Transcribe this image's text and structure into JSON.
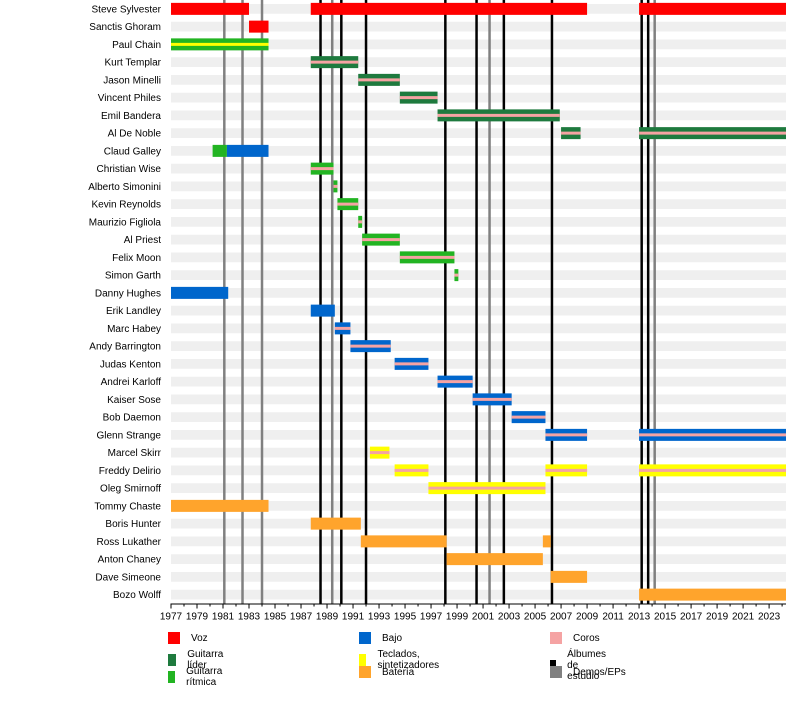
{
  "chart_data": {
    "type": "timeline",
    "x_range": [
      1977,
      2024.3
    ],
    "x_ticks": [
      1977,
      1979,
      1981,
      1983,
      1985,
      1987,
      1989,
      1991,
      1993,
      1995,
      1997,
      1999,
      2001,
      2003,
      2005,
      2007,
      2009,
      2011,
      2013,
      2015,
      2017,
      2019,
      2021,
      2023
    ],
    "colors": {
      "voz": "#ff0000",
      "guitarra_lider": "#1e7a3e",
      "guitarra_ritmica": "#22b422",
      "bajo": "#0066cc",
      "coros": "#f5a3a3",
      "teclados": "#ffff00",
      "bateria": "#ffa42c",
      "album": "#000000",
      "demo": "#808080"
    },
    "members": [
      {
        "name": "Steve Sylvester",
        "spans": [
          [
            1977,
            1983,
            "voz",
            null
          ],
          [
            1987.75,
            2009,
            "voz",
            null
          ],
          [
            2013,
            2024.3,
            "voz",
            null
          ]
        ]
      },
      {
        "name": "Sanctis Ghoram",
        "spans": [
          [
            1983,
            1984.5,
            "voz",
            null
          ]
        ]
      },
      {
        "name": "Paul Chain",
        "spans": [
          [
            1977,
            1984.5,
            "guitarra_ritmica",
            "teclados"
          ]
        ]
      },
      {
        "name": "Kurt Templar",
        "spans": [
          [
            1987.75,
            1991.4,
            "guitarra_lider",
            "coros"
          ]
        ]
      },
      {
        "name": "Jason Minelli",
        "spans": [
          [
            1991.4,
            1994.6,
            "guitarra_lider",
            "coros"
          ]
        ]
      },
      {
        "name": "Vincent Philes",
        "spans": [
          [
            1994.6,
            1997.5,
            "guitarra_lider",
            "coros"
          ]
        ]
      },
      {
        "name": "Emil Bandera",
        "spans": [
          [
            1997.5,
            2006.9,
            "guitarra_lider",
            "coros"
          ]
        ]
      },
      {
        "name": "Al De Noble",
        "spans": [
          [
            2007,
            2008.5,
            "guitarra_lider",
            "coros"
          ],
          [
            2013,
            2024.3,
            "guitarra_lider",
            "coros"
          ]
        ]
      },
      {
        "name": "Claud Galley",
        "spans": [
          [
            1980.2,
            1981.3,
            "guitarra_ritmica",
            null
          ],
          [
            1981.3,
            1984.5,
            "bajo",
            null
          ]
        ]
      },
      {
        "name": "Christian Wise",
        "spans": [
          [
            1987.75,
            1989.5,
            "guitarra_ritmica",
            "coros"
          ]
        ]
      },
      {
        "name": "Alberto Simonini",
        "spans": [
          [
            1989.5,
            1989.8,
            "guitarra_ritmica",
            "coros"
          ]
        ]
      },
      {
        "name": "Kevin Reynolds",
        "spans": [
          [
            1989.8,
            1991.4,
            "guitarra_ritmica",
            "coros"
          ]
        ]
      },
      {
        "name": "Maurizio Figliola",
        "spans": [
          [
            1991.4,
            1991.7,
            "guitarra_ritmica",
            "coros"
          ]
        ]
      },
      {
        "name": "Al Priest",
        "spans": [
          [
            1991.7,
            1994.6,
            "guitarra_ritmica",
            "coros"
          ]
        ]
      },
      {
        "name": "Felix Moon",
        "spans": [
          [
            1994.6,
            1998.8,
            "guitarra_ritmica",
            "coros"
          ]
        ]
      },
      {
        "name": "Simon Garth",
        "spans": [
          [
            1998.8,
            1999.1,
            "guitarra_ritmica",
            "coros"
          ]
        ]
      },
      {
        "name": "Danny Hughes",
        "spans": [
          [
            1977,
            1981.4,
            "bajo",
            null
          ]
        ]
      },
      {
        "name": "Erik Landley",
        "spans": [
          [
            1987.75,
            1989.6,
            "bajo",
            null
          ]
        ]
      },
      {
        "name": "Marc Habey",
        "spans": [
          [
            1989.6,
            1990.8,
            "bajo",
            "coros"
          ]
        ]
      },
      {
        "name": "Andy Barrington",
        "spans": [
          [
            1990.8,
            1993.9,
            "bajo",
            "coros"
          ]
        ]
      },
      {
        "name": "Judas Kenton",
        "spans": [
          [
            1994.2,
            1996.8,
            "bajo",
            "coros"
          ]
        ]
      },
      {
        "name": "Andrei Karloff",
        "spans": [
          [
            1997.5,
            2000.2,
            "bajo",
            "coros"
          ]
        ]
      },
      {
        "name": "Kaiser Sose",
        "spans": [
          [
            2000.2,
            2003.2,
            "bajo",
            "coros"
          ]
        ]
      },
      {
        "name": "Bob Daemon",
        "spans": [
          [
            2003.2,
            2005.8,
            "bajo",
            "coros"
          ]
        ]
      },
      {
        "name": "Glenn Strange",
        "spans": [
          [
            2005.8,
            2009,
            "bajo",
            "coros"
          ],
          [
            2013,
            2024.3,
            "bajo",
            "coros"
          ]
        ]
      },
      {
        "name": "Marcel Skirr",
        "spans": [
          [
            1992.3,
            1993.8,
            "teclados",
            "coros"
          ]
        ]
      },
      {
        "name": "Freddy Delirio",
        "spans": [
          [
            1994.2,
            1996.8,
            "teclados",
            "coros"
          ],
          [
            2005.8,
            2009,
            "teclados",
            "coros"
          ],
          [
            2013,
            2024.3,
            "teclados",
            "coros"
          ]
        ]
      },
      {
        "name": "Oleg Smirnoff",
        "spans": [
          [
            1996.8,
            2005.8,
            "teclados",
            "coros"
          ]
        ]
      },
      {
        "name": "Tommy Chaste",
        "spans": [
          [
            1977,
            1984.5,
            "bateria",
            null
          ]
        ]
      },
      {
        "name": "Boris Hunter",
        "spans": [
          [
            1987.75,
            1991.6,
            "bateria",
            null
          ]
        ]
      },
      {
        "name": "Ross Lukather",
        "spans": [
          [
            1991.6,
            1998.2,
            "bateria",
            null
          ],
          [
            2005.6,
            2006.2,
            "bateria",
            null
          ]
        ]
      },
      {
        "name": "Anton Chaney",
        "spans": [
          [
            1998.2,
            2005.6,
            "bateria",
            null
          ]
        ]
      },
      {
        "name": "Dave Simeone",
        "spans": [
          [
            2006.2,
            2009,
            "bateria",
            null
          ]
        ]
      },
      {
        "name": "Bozo Wolff",
        "spans": [
          [
            2013,
            2024.3,
            "bateria",
            null
          ]
        ]
      }
    ],
    "studio_albums": [
      1988.5,
      1990.1,
      1992,
      1998.1,
      2000.5,
      2002.6,
      2006.3,
      2013.2,
      2013.7
    ],
    "demos": [
      1981.1,
      1982.5,
      1984,
      1989.4,
      2001.5,
      2014.2
    ],
    "legend": [
      {
        "key": "voz",
        "label": "Voz"
      },
      {
        "key": "guitarra_lider",
        "label": "Guitarra líder"
      },
      {
        "key": "guitarra_ritmica",
        "label": "Guitarra rítmica"
      },
      {
        "key": "bajo",
        "label": "Bajo"
      },
      {
        "key": "teclados",
        "label": "Teclados, sintetizadores"
      },
      {
        "key": "bateria",
        "label": "Batería"
      },
      {
        "key": "coros",
        "label": "Coros"
      },
      {
        "key": "album",
        "label": "Álbumes de estudio"
      },
      {
        "key": "demo",
        "label": "Demos/EPs"
      }
    ]
  }
}
